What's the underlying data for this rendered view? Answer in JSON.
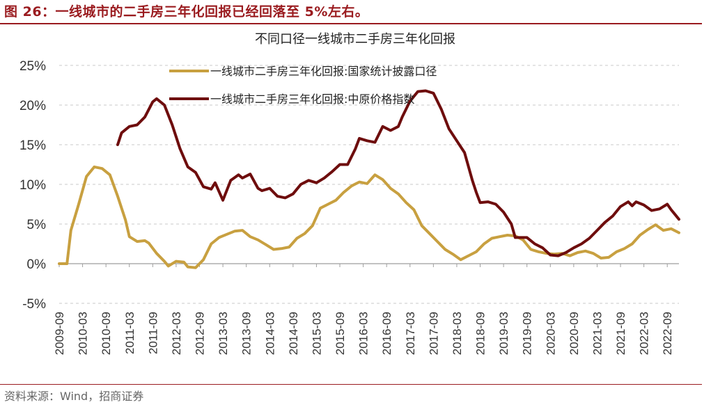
{
  "figure": {
    "caption": "图 26：一线城市的二手房三年化回报已经回落至 5%左右。",
    "source": "资料来源：Wind，招商证券"
  },
  "colors": {
    "accent": "#9a1b1f",
    "series_gold": "#c8a040",
    "series_dark": "#6e0d0d"
  },
  "chart_data": {
    "type": "line",
    "title": "不同口径一线城市二手房三年化回报",
    "xlabel": "",
    "ylabel": "",
    "ylim": [
      -5,
      25
    ],
    "yticks": [
      -5,
      0,
      5,
      10,
      15,
      20,
      25
    ],
    "ytick_labels": [
      "-5%",
      "0%",
      "5%",
      "10%",
      "15%",
      "20%",
      "25%"
    ],
    "x_start": "2009-09",
    "x_end": "2022-12",
    "xtick_labels": [
      "2009-09",
      "2010-03",
      "2010-09",
      "2011-03",
      "2011-09",
      "2012-03",
      "2012-09",
      "2013-03",
      "2013-09",
      "2014-03",
      "2014-09",
      "2015-03",
      "2015-09",
      "2016-03",
      "2016-09",
      "2017-03",
      "2017-09",
      "2018-03",
      "2018-09",
      "2019-03",
      "2019-09",
      "2020-03",
      "2020-09",
      "2021-03",
      "2021-09",
      "2022-03",
      "2022-09"
    ],
    "grid": true,
    "legend_position": "top",
    "series": [
      {
        "name": "一线城市二手房三年化回报:国家统计披露口径",
        "color": "#c8a040",
        "points": [
          [
            "2009-09",
            0
          ],
          [
            "2009-11",
            0
          ],
          [
            "2009-12",
            4.2
          ],
          [
            "2010-02",
            7.5
          ],
          [
            "2010-04",
            11
          ],
          [
            "2010-06",
            12.2
          ],
          [
            "2010-08",
            12
          ],
          [
            "2010-10",
            11.2
          ],
          [
            "2010-12",
            8.5
          ],
          [
            "2011-02",
            5.5
          ],
          [
            "2011-03",
            3.4
          ],
          [
            "2011-05",
            2.8
          ],
          [
            "2011-07",
            2.9
          ],
          [
            "2011-08",
            2.6
          ],
          [
            "2011-10",
            1.3
          ],
          [
            "2011-12",
            0.3
          ],
          [
            "2012-01",
            -0.3
          ],
          [
            "2012-03",
            0.3
          ],
          [
            "2012-05",
            0.2
          ],
          [
            "2012-06",
            -0.4
          ],
          [
            "2012-08",
            -0.5
          ],
          [
            "2012-10",
            0.5
          ],
          [
            "2012-12",
            2.5
          ],
          [
            "2013-02",
            3.3
          ],
          [
            "2013-04",
            3.7
          ],
          [
            "2013-06",
            4.1
          ],
          [
            "2013-08",
            4.2
          ],
          [
            "2013-10",
            3.4
          ],
          [
            "2013-12",
            3
          ],
          [
            "2014-02",
            2.4
          ],
          [
            "2014-04",
            1.8
          ],
          [
            "2014-06",
            1.9
          ],
          [
            "2014-08",
            2.1
          ],
          [
            "2014-10",
            3.2
          ],
          [
            "2014-12",
            3.8
          ],
          [
            "2015-02",
            4.8
          ],
          [
            "2015-04",
            7
          ],
          [
            "2015-06",
            7.5
          ],
          [
            "2015-08",
            8
          ],
          [
            "2015-10",
            9
          ],
          [
            "2015-12",
            9.8
          ],
          [
            "2016-02",
            10.3
          ],
          [
            "2016-04",
            10.1
          ],
          [
            "2016-06",
            11.2
          ],
          [
            "2016-08",
            10.6
          ],
          [
            "2016-10",
            9.5
          ],
          [
            "2016-12",
            8.8
          ],
          [
            "2017-02",
            7.7
          ],
          [
            "2017-04",
            6.8
          ],
          [
            "2017-06",
            4.8
          ],
          [
            "2017-08",
            3.8
          ],
          [
            "2017-10",
            2.8
          ],
          [
            "2017-12",
            1.8
          ],
          [
            "2018-02",
            1.2
          ],
          [
            "2018-04",
            0.5
          ],
          [
            "2018-06",
            1
          ],
          [
            "2018-08",
            1.5
          ],
          [
            "2018-10",
            2.5
          ],
          [
            "2018-12",
            3.2
          ],
          [
            "2019-02",
            3.4
          ],
          [
            "2019-04",
            3.6
          ],
          [
            "2019-06",
            3.5
          ],
          [
            "2019-08",
            3
          ],
          [
            "2019-10",
            1.8
          ],
          [
            "2019-12",
            1.5
          ],
          [
            "2020-02",
            1.3
          ],
          [
            "2020-04",
            1.2
          ],
          [
            "2020-06",
            1.3
          ],
          [
            "2020-08",
            1
          ],
          [
            "2020-10",
            1.4
          ],
          [
            "2020-12",
            1.6
          ],
          [
            "2021-02",
            1.3
          ],
          [
            "2021-04",
            0.7
          ],
          [
            "2021-06",
            0.8
          ],
          [
            "2021-08",
            1.5
          ],
          [
            "2021-10",
            1.9
          ],
          [
            "2021-12",
            2.5
          ],
          [
            "2022-02",
            3.6
          ],
          [
            "2022-04",
            4.3
          ],
          [
            "2022-06",
            4.9
          ],
          [
            "2022-08",
            4.2
          ],
          [
            "2022-10",
            4.4
          ],
          [
            "2022-12",
            3.9
          ]
        ]
      },
      {
        "name": "一线城市二手房三年化回报:中原价格指数",
        "color": "#6e0d0d",
        "points": [
          [
            "2010-12",
            15
          ],
          [
            "2011-01",
            16.5
          ],
          [
            "2011-03",
            17.3
          ],
          [
            "2011-05",
            17.5
          ],
          [
            "2011-07",
            18.5
          ],
          [
            "2011-09",
            20.4
          ],
          [
            "2011-10",
            20.8
          ],
          [
            "2011-12",
            20
          ],
          [
            "2012-02",
            17.5
          ],
          [
            "2012-04",
            14.5
          ],
          [
            "2012-06",
            12.2
          ],
          [
            "2012-08",
            11.5
          ],
          [
            "2012-10",
            9.7
          ],
          [
            "2012-12",
            9.4
          ],
          [
            "2013-01",
            10.2
          ],
          [
            "2013-03",
            8
          ],
          [
            "2013-05",
            10.5
          ],
          [
            "2013-07",
            11.2
          ],
          [
            "2013-08",
            10.8
          ],
          [
            "2013-10",
            11.3
          ],
          [
            "2013-12",
            9.5
          ],
          [
            "2014-01",
            9.2
          ],
          [
            "2014-03",
            9.5
          ],
          [
            "2014-05",
            8.5
          ],
          [
            "2014-07",
            8.3
          ],
          [
            "2014-09",
            8.8
          ],
          [
            "2014-11",
            10
          ],
          [
            "2015-01",
            10.5
          ],
          [
            "2015-03",
            10.2
          ],
          [
            "2015-05",
            10.8
          ],
          [
            "2015-07",
            11.6
          ],
          [
            "2015-09",
            12.5
          ],
          [
            "2015-11",
            12.5
          ],
          [
            "2016-01",
            14.5
          ],
          [
            "2016-02",
            15.8
          ],
          [
            "2016-04",
            15.5
          ],
          [
            "2016-06",
            15.3
          ],
          [
            "2016-08",
            17.3
          ],
          [
            "2016-10",
            16.8
          ],
          [
            "2016-12",
            17.3
          ],
          [
            "2017-01",
            18.5
          ],
          [
            "2017-03",
            20.5
          ],
          [
            "2017-05",
            21.7
          ],
          [
            "2017-07",
            21.8
          ],
          [
            "2017-09",
            21.5
          ],
          [
            "2017-11",
            19.5
          ],
          [
            "2018-01",
            17
          ],
          [
            "2018-03",
            15.5
          ],
          [
            "2018-05",
            14
          ],
          [
            "2018-07",
            10.5
          ],
          [
            "2018-08",
            9
          ],
          [
            "2018-09",
            7.7
          ],
          [
            "2018-11",
            7.8
          ],
          [
            "2019-01",
            7.5
          ],
          [
            "2019-03",
            6.5
          ],
          [
            "2019-05",
            5
          ],
          [
            "2019-06",
            3.3
          ],
          [
            "2019-07",
            3.3
          ],
          [
            "2019-09",
            3.3
          ],
          [
            "2019-11",
            2.5
          ],
          [
            "2020-01",
            2
          ],
          [
            "2020-03",
            1.1
          ],
          [
            "2020-05",
            1
          ],
          [
            "2020-07",
            1.4
          ],
          [
            "2020-09",
            2
          ],
          [
            "2020-11",
            2.5
          ],
          [
            "2021-01",
            3.2
          ],
          [
            "2021-03",
            4.2
          ],
          [
            "2021-05",
            5.2
          ],
          [
            "2021-07",
            6
          ],
          [
            "2021-09",
            7.2
          ],
          [
            "2021-11",
            7.8
          ],
          [
            "2021-12",
            7.3
          ],
          [
            "2022-01",
            7.8
          ],
          [
            "2022-03",
            7.4
          ],
          [
            "2022-05",
            6.7
          ],
          [
            "2022-07",
            6.9
          ],
          [
            "2022-09",
            7.5
          ],
          [
            "2022-10",
            6.8
          ],
          [
            "2022-11",
            6.2
          ],
          [
            "2022-12",
            5.6
          ]
        ]
      }
    ]
  }
}
